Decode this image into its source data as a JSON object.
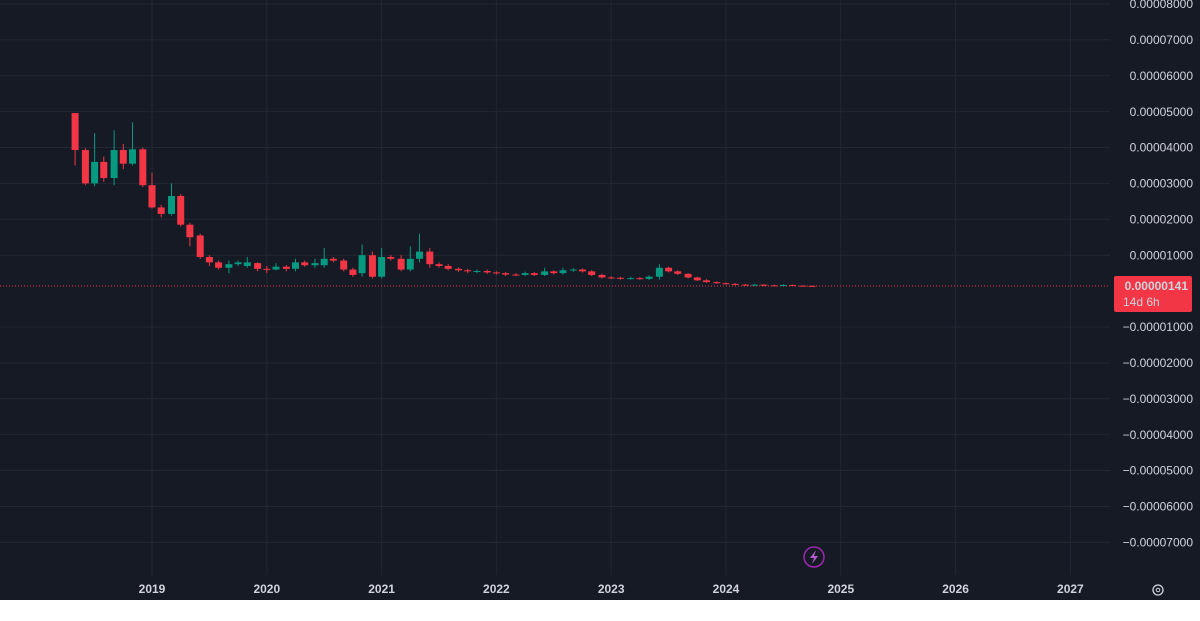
{
  "chart_data": {
    "type": "candlestick",
    "x": [
      2018.33,
      2018.42,
      2018.5,
      2018.58,
      2018.67,
      2018.75,
      2018.83,
      2018.92,
      2019.0,
      2019.08,
      2019.17,
      2019.25,
      2019.33,
      2019.42,
      2019.5,
      2019.58,
      2019.67,
      2019.75,
      2019.83,
      2019.92,
      2020.0,
      2020.08,
      2020.17,
      2020.25,
      2020.33,
      2020.42,
      2020.5,
      2020.58,
      2020.67,
      2020.75,
      2020.83,
      2020.92,
      2021.0,
      2021.08,
      2021.17,
      2021.25,
      2021.33,
      2021.42,
      2021.5,
      2021.58,
      2021.67,
      2021.75,
      2021.83,
      2021.92,
      2022.0,
      2022.08,
      2022.17,
      2022.25,
      2022.33,
      2022.42,
      2022.5,
      2022.58,
      2022.67,
      2022.75,
      2022.83,
      2022.92,
      2023.0,
      2023.08,
      2023.17,
      2023.25,
      2023.33,
      2023.42,
      2023.5,
      2023.58,
      2023.67,
      2023.75,
      2023.83,
      2023.92,
      2024.0,
      2024.08,
      2024.17,
      2024.25,
      2024.33,
      2024.42,
      2024.5,
      2024.58,
      2024.67,
      2024.75
    ],
    "open": [
      4.96e-05,
      3.93e-05,
      3e-05,
      3.6e-05,
      3.15e-05,
      3.93e-05,
      3.55e-05,
      3.95e-05,
      2.95e-05,
      2.33e-05,
      2.15e-05,
      2.65e-05,
      1.85e-05,
      1.55e-05,
      9.5e-06,
      8e-06,
      6.5e-06,
      7.5e-06,
      7e-06,
      7.8e-06,
      6.2e-06,
      6e-06,
      6.8e-06,
      6.2e-06,
      8e-06,
      7.2e-06,
      7.2e-06,
      9e-06,
      8.5e-06,
      6e-06,
      5e-06,
      1e-05,
      4e-06,
      9.5e-06,
      9e-06,
      6e-06,
      9e-06,
      1.1e-05,
      7.5e-06,
      7e-06,
      6.2e-06,
      5.8e-06,
      5.5e-06,
      5.6e-06,
      5.2e-06,
      5e-06,
      4.6e-06,
      4.5e-06,
      5e-06,
      4.5e-06,
      5.5e-06,
      5e-06,
      5.8e-06,
      6e-06,
      5.5e-06,
      4.5e-06,
      3.8e-06,
      3.7e-06,
      3.5e-06,
      3.6e-06,
      3.4e-06,
      4e-06,
      6.5e-06,
      5.5e-06,
      4.8e-06,
      3.8e-06,
      3e-06,
      2.5e-06,
      2.2e-06,
      2e-06,
      1.8e-06,
      1.7e-06,
      1.8e-06,
      1.6e-06,
      1.5e-06,
      1.7e-06,
      1.5e-06,
      1.45e-06
    ],
    "high": [
      4.96e-05,
      3.98e-05,
      4.4e-05,
      3.75e-05,
      4.48e-05,
      4.1e-05,
      4.7e-05,
      4e-05,
      3.3e-05,
      2.4e-05,
      3e-05,
      2.7e-05,
      1.9e-05,
      1.6e-05,
      1e-05,
      8.5e-06,
      8.5e-06,
      8.5e-06,
      9.5e-06,
      8e-06,
      7e-06,
      7.8e-06,
      7.2e-06,
      9e-06,
      8.5e-06,
      9e-06,
      1.2e-05,
      9.5e-06,
      9e-06,
      6.5e-06,
      1.3e-05,
      1.1e-05,
      1.2e-05,
      1e-05,
      1e-05,
      1.25e-05,
      1.6e-05,
      1.2e-05,
      8e-06,
      7.5e-06,
      6.6e-06,
      6.2e-06,
      6e-06,
      6e-06,
      5.5e-06,
      5.3e-06,
      5e-06,
      5.4e-06,
      5.3e-06,
      6.5e-06,
      5.8e-06,
      6.5e-06,
      6.4e-06,
      6.3e-06,
      5.8e-06,
      4.8e-06,
      4.1e-06,
      4e-06,
      4e-06,
      3.9e-06,
      4.4e-06,
      7.5e-06,
      6.8e-06,
      5.8e-06,
      5e-06,
      4e-06,
      3.3e-06,
      2.7e-06,
      2.4e-06,
      2.2e-06,
      2e-06,
      2e-06,
      1.9e-06,
      1.8e-06,
      1.9e-06,
      1.8e-06,
      1.6e-06,
      1.6e-06
    ],
    "low": [
      3.5e-05,
      2.95e-05,
      2.92e-05,
      3.05e-05,
      2.95e-05,
      3.4e-05,
      3.5e-05,
      2.9e-05,
      2.3e-05,
      2.05e-05,
      2.1e-05,
      1.8e-05,
      1.25e-05,
      9e-06,
      7e-06,
      6e-06,
      5e-06,
      7e-06,
      6.5e-06,
      5.5e-06,
      5e-06,
      5.8e-06,
      5.5e-06,
      5.5e-06,
      6.8e-06,
      6.5e-06,
      6.5e-06,
      8e-06,
      5.5e-06,
      4e-06,
      4e-06,
      3.5e-06,
      3.5e-06,
      8.5e-06,
      5.5e-06,
      5.5e-06,
      8e-06,
      6.5e-06,
      6.5e-06,
      5.8e-06,
      5.4e-06,
      5e-06,
      5e-06,
      4.8e-06,
      4.6e-06,
      4.2e-06,
      4.2e-06,
      4.2e-06,
      4.2e-06,
      4.2e-06,
      4.6e-06,
      4.6e-06,
      5.4e-06,
      5.2e-06,
      4.2e-06,
      3.5e-06,
      3.4e-06,
      3.2e-06,
      3.2e-06,
      3.1e-06,
      3.1e-06,
      3.2e-06,
      5.2e-06,
      4.5e-06,
      3.5e-06,
      2.8e-06,
      2.3e-06,
      2e-06,
      1.8e-06,
      1.6e-06,
      1.5e-06,
      1.5e-06,
      1.4e-06,
      1.3e-06,
      1.4e-06,
      1.3e-06,
      1.3e-06,
      1.3e-06
    ],
    "close": [
      3.93e-05,
      3e-05,
      3.6e-05,
      3.15e-05,
      3.93e-05,
      3.55e-05,
      3.95e-05,
      2.95e-05,
      2.33e-05,
      2.15e-05,
      2.65e-05,
      1.85e-05,
      1.5e-05,
      9.5e-06,
      8e-06,
      6.5e-06,
      7.5e-06,
      8e-06,
      8e-06,
      6.2e-06,
      6e-06,
      6.8e-06,
      6.2e-06,
      8e-06,
      7.2e-06,
      7.8e-06,
      9e-06,
      8.5e-06,
      6e-06,
      4.5e-06,
      1e-05,
      4e-06,
      9.5e-06,
      9e-06,
      6e-06,
      9e-06,
      1.1e-05,
      7.5e-06,
      7e-06,
      6.2e-06,
      5.8e-06,
      5.5e-06,
      5.6e-06,
      5.2e-06,
      5e-06,
      4.6e-06,
      4.5e-06,
      5e-06,
      4.5e-06,
      5.5e-06,
      5e-06,
      5.8e-06,
      6e-06,
      5.5e-06,
      4.5e-06,
      3.8e-06,
      3.7e-06,
      3.5e-06,
      3.6e-06,
      3.4e-06,
      4e-06,
      6.5e-06,
      5.5e-06,
      4.8e-06,
      3.8e-06,
      3e-06,
      2.5e-06,
      2.2e-06,
      2e-06,
      1.8e-06,
      1.7e-06,
      1.8e-06,
      1.6e-06,
      1.5e-06,
      1.7e-06,
      1.5e-06,
      1.45e-06,
      1.41e-06
    ],
    "up_color": "#089981",
    "down_color": "#f23645",
    "xlim": [
      2017.676,
      2027.345
    ],
    "xticks": [
      2019,
      2020,
      2021,
      2022,
      2023,
      2024,
      2025,
      2026,
      2027
    ],
    "ylim": [
      -7.91e-05,
      8.11e-05
    ],
    "yticks": [
      {
        "value": 8e-05,
        "label": "0.00008000"
      },
      {
        "value": 7e-05,
        "label": "0.00007000"
      },
      {
        "value": 6e-05,
        "label": "0.00006000"
      },
      {
        "value": 5e-05,
        "label": "0.00005000"
      },
      {
        "value": 4e-05,
        "label": "0.00004000"
      },
      {
        "value": 3e-05,
        "label": "0.00003000"
      },
      {
        "value": 2e-05,
        "label": "0.00002000"
      },
      {
        "value": 1e-05,
        "label": "0.00001000"
      },
      {
        "value": -1e-05,
        "label": "−0.00001000"
      },
      {
        "value": -2e-05,
        "label": "−0.00002000"
      },
      {
        "value": -3e-05,
        "label": "−0.00003000"
      },
      {
        "value": -4e-05,
        "label": "−0.00004000"
      },
      {
        "value": -5e-05,
        "label": "−0.00005000"
      },
      {
        "value": -6e-05,
        "label": "−0.00006000"
      },
      {
        "value": -7e-05,
        "label": "−0.00007000"
      }
    ],
    "grid": true,
    "last_price": {
      "value": 1.41e-06,
      "label": "0.00000141"
    },
    "countdown": "14d 6h"
  }
}
